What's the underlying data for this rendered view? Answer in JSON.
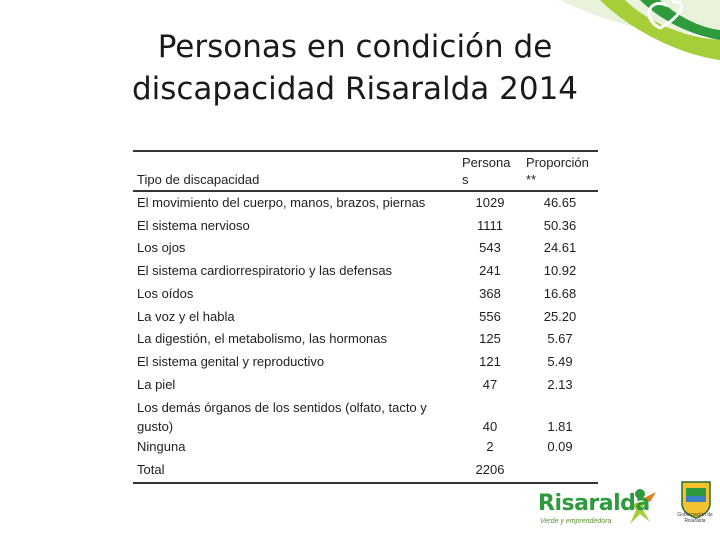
{
  "slide": {
    "title_line1": "Personas en condición de",
    "title_line2": "discapacidad Risaralda 2014"
  },
  "table": {
    "headers": {
      "type": "Tipo de discapacidad",
      "persons": "Persona s",
      "proportion": "Proporción **"
    },
    "rows": [
      {
        "type": "El movimiento del cuerpo, manos, brazos, piernas",
        "persons": "1029",
        "proportion": "46.65"
      },
      {
        "type": "El sistema nervioso",
        "persons": "1111",
        "proportion": "50.36"
      },
      {
        "type": "Los ojos",
        "persons": "543",
        "proportion": "24.61"
      },
      {
        "type": "El sistema cardiorrespiratorio y las defensas",
        "persons": "241",
        "proportion": "10.92"
      },
      {
        "type": "Los oídos",
        "persons": "368",
        "proportion": "16.68"
      },
      {
        "type": "La voz y el habla",
        "persons": "556",
        "proportion": "25.20"
      },
      {
        "type": "La digestión, el metabolismo, las hormonas",
        "persons": "125",
        "proportion": "5.67"
      },
      {
        "type": "El sistema genital y reproductivo",
        "persons": "121",
        "proportion": "5.49"
      },
      {
        "type": "La piel",
        "persons": "47",
        "proportion": "2.13"
      },
      {
        "type": "Los demás órganos de los sentidos (olfato, tacto y gusto)",
        "persons": "40",
        "proportion": "1.81"
      },
      {
        "type": "Ninguna",
        "persons": "2",
        "proportion": "0.09"
      },
      {
        "type": "Total",
        "persons": "2206",
        "proportion": ""
      }
    ]
  },
  "branding": {
    "logo_word": "Risaralda",
    "logo_tagline": "Verde y emprendedora",
    "seal_caption": "Gobernación de Risaralda",
    "accent_green": "#2e9a3d",
    "accent_light_green": "#a6ce39"
  }
}
